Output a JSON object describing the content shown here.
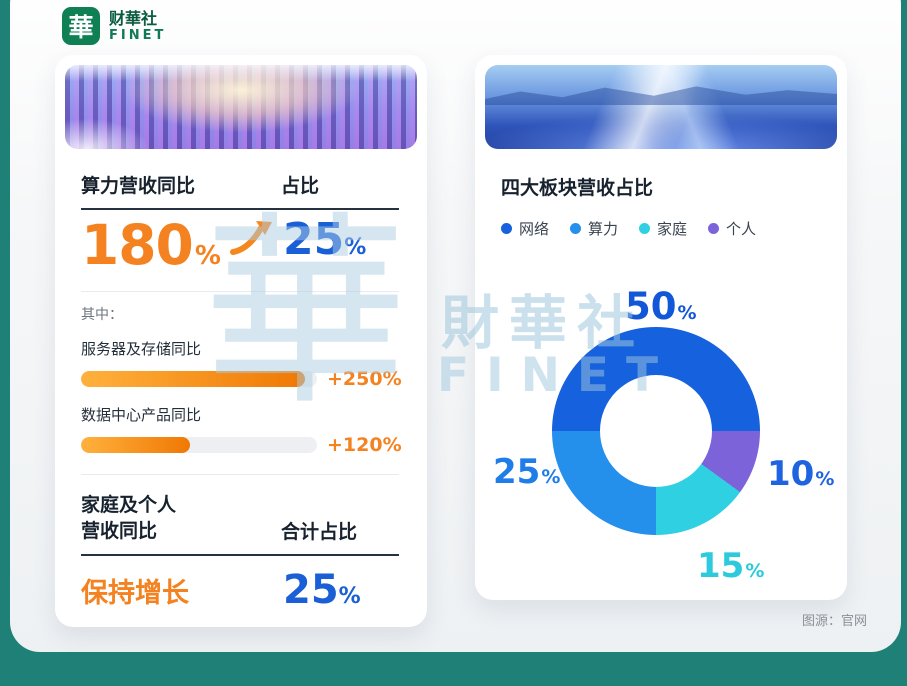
{
  "logo": {
    "mark": "華",
    "name_cn": "财華社",
    "name_en": "FINET"
  },
  "watermark": {
    "glyph": "華",
    "text_cn": "財華社",
    "text_en": "FINET"
  },
  "page": {
    "source_note": "图源：官网"
  },
  "accent_colors": {
    "orange": "#f58220",
    "blue": "#1a5fd6",
    "teal_background": "#1f8077",
    "logo_green": "#0f8054"
  },
  "left_card": {
    "header_image": "data-center-servers",
    "sec1": {
      "title_left": "算力营收同比",
      "title_right": "占比",
      "value_left": "180",
      "value_left_unit": "%",
      "value_right": "25",
      "value_right_unit": "%"
    },
    "among_label": "其中：",
    "bars": [
      {
        "label": "服务器及存储同比",
        "value_label": "+250%",
        "fill_percent": 95
      },
      {
        "label": "数据中心产品同比",
        "value_label": "+120%",
        "fill_percent": 46
      }
    ],
    "sec2": {
      "title_left_line1": "家庭及个人",
      "title_left_line2": "营收同比",
      "title_right": "合计占比",
      "value_left": "保持增长",
      "value_right": "25",
      "value_right_unit": "%"
    }
  },
  "right_card": {
    "header_image": "highway-light-trails",
    "title": "四大板块营收占比"
  },
  "chart_data": [
    {
      "type": "pie",
      "donut": true,
      "title": "四大板块营收占比",
      "labels": [
        "网络",
        "算力",
        "家庭",
        "个人"
      ],
      "values": [
        50,
        25,
        15,
        10
      ],
      "unit": "%",
      "colors": [
        "#1661dd",
        "#2490ec",
        "#2fd0e2",
        "#7d63d9"
      ],
      "label_colors": [
        "#1257d8",
        "#1e7de8",
        "#2bcadd",
        "#1f63e0"
      ],
      "legend_position": "top",
      "start_angle_deg": 270,
      "draw_order_clockwise": [
        "网络",
        "个人",
        "家庭",
        "算力"
      ]
    },
    {
      "type": "bar",
      "title": "算力营收同比 其中",
      "categories": [
        "服务器及存储同比",
        "数据中心产品同比"
      ],
      "values": [
        250,
        120
      ],
      "unit": "%"
    }
  ]
}
